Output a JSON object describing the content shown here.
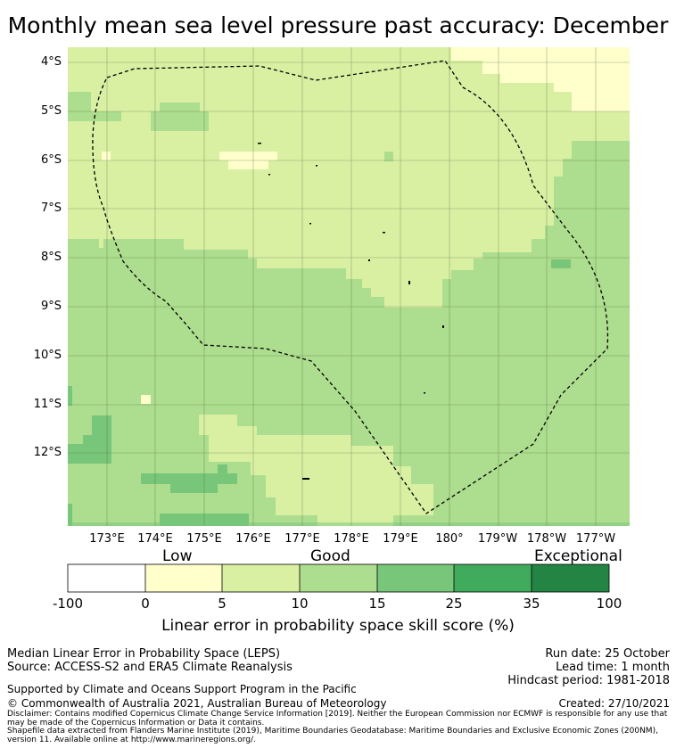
{
  "title": "Monthly mean sea level pressure past accuracy: December",
  "map": {
    "lat_labels": [
      "4°S",
      "5°S",
      "6°S",
      "7°S",
      "8°S",
      "9°S",
      "10°S",
      "11°S",
      "12°S"
    ],
    "lon_labels": [
      "173°E",
      "174°E",
      "175°E",
      "176°E",
      "177°E",
      "178°E",
      "179°E",
      "180°",
      "179°W",
      "178°W",
      "177°W"
    ],
    "boundary": "dashed EEZ outline"
  },
  "colorbar": {
    "categories": [
      "Low",
      "Good",
      "Exceptional"
    ],
    "ticks": [
      "-100",
      "0",
      "5",
      "10",
      "15",
      "25",
      "35",
      "100"
    ],
    "colors": [
      "#ffffff",
      "#ffffcc",
      "#d9f0a3",
      "#addd8e",
      "#78c679",
      "#41ab5d",
      "#238443"
    ],
    "label": "Linear error in probability space skill score (%)"
  },
  "info": {
    "method": "Median Linear Error in Probability Space (LEPS)",
    "source": "Source: ACCESS-S2 and ERA5 Climate Reanalysis",
    "run_date": "Run date: 25 October",
    "lead_time": "Lead time: 1 month",
    "hindcast": "Hindcast period: 1981-2018",
    "support": "Supported by Climate and Oceans Support Program in the Pacific",
    "copyright": "© Commonwealth of Australia 2021, Australian Bureau of Meteorology",
    "created": "Created: 27/10/2021",
    "disclaimer": "Disclaimer: Contains modified Copernicus Climate Change Service Information [2019]. Neither the European Commission nor ECMWF is responsible for any use that may be made of the Copernicus Information or Data it contains.",
    "shapefile": "Shapefile data extracted from Flanders Marine Institute (2019), Maritime Boundaries Geodatabase: Maritime Boundaries and Exclusive Economic Zones (200NM), version 11. Available online at http://www.marineregions.org/."
  }
}
